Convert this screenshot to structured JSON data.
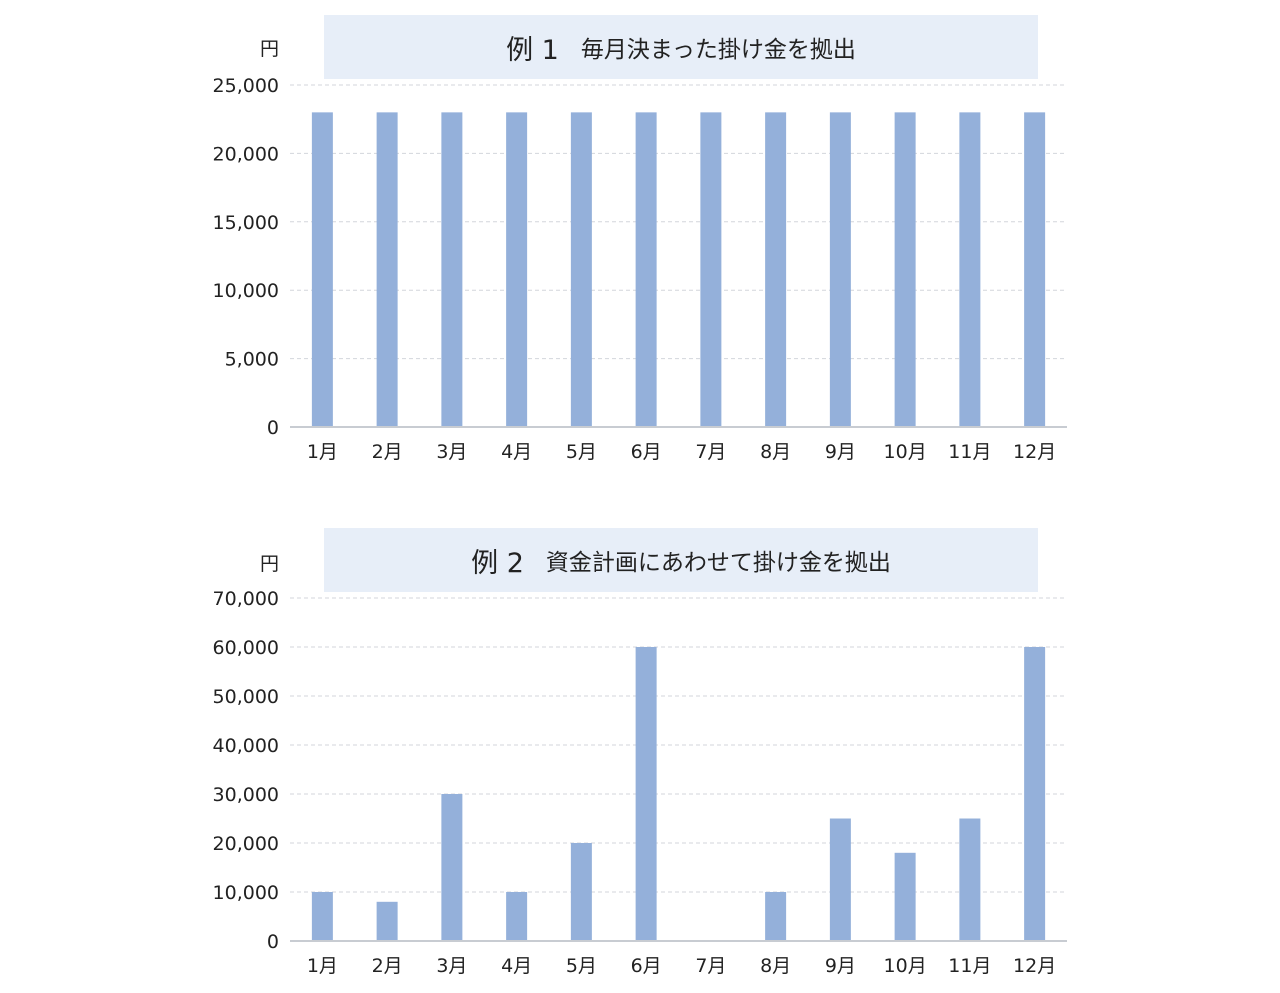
{
  "chart_data": [
    {
      "type": "bar",
      "title_prefix": "例 1",
      "title": "毎月決まった掛け金を拠出",
      "ylabel": "円",
      "ylim": [
        0,
        25000
      ],
      "yticks": [
        0,
        5000,
        10000,
        15000,
        20000,
        25000
      ],
      "ytick_labels": [
        "0",
        "5,000",
        "10,000",
        "15,000",
        "20,000",
        "25,000"
      ],
      "categories": [
        "1月",
        "2月",
        "3月",
        "4月",
        "5月",
        "6月",
        "7月",
        "8月",
        "9月",
        "10月",
        "11月",
        "12月"
      ],
      "values": [
        23000,
        23000,
        23000,
        23000,
        23000,
        23000,
        23000,
        23000,
        23000,
        23000,
        23000,
        23000
      ],
      "grid": true,
      "bar_color": "#94b0da"
    },
    {
      "type": "bar",
      "title_prefix": "例 2",
      "title": "資金計画にあわせて掛け金を拠出",
      "ylabel": "円",
      "ylim": [
        0,
        70000
      ],
      "yticks": [
        0,
        10000,
        20000,
        30000,
        40000,
        50000,
        60000,
        70000
      ],
      "ytick_labels": [
        "0",
        "10,000",
        "20,000",
        "30,000",
        "40,000",
        "50,000",
        "60,000",
        "70,000"
      ],
      "categories": [
        "1月",
        "2月",
        "3月",
        "4月",
        "5月",
        "6月",
        "7月",
        "8月",
        "9月",
        "10月",
        "11月",
        "12月"
      ],
      "values": [
        10000,
        8000,
        30000,
        10000,
        20000,
        60000,
        0,
        10000,
        25000,
        18000,
        25000,
        60000
      ],
      "grid": true,
      "bar_color": "#94b0da"
    }
  ]
}
